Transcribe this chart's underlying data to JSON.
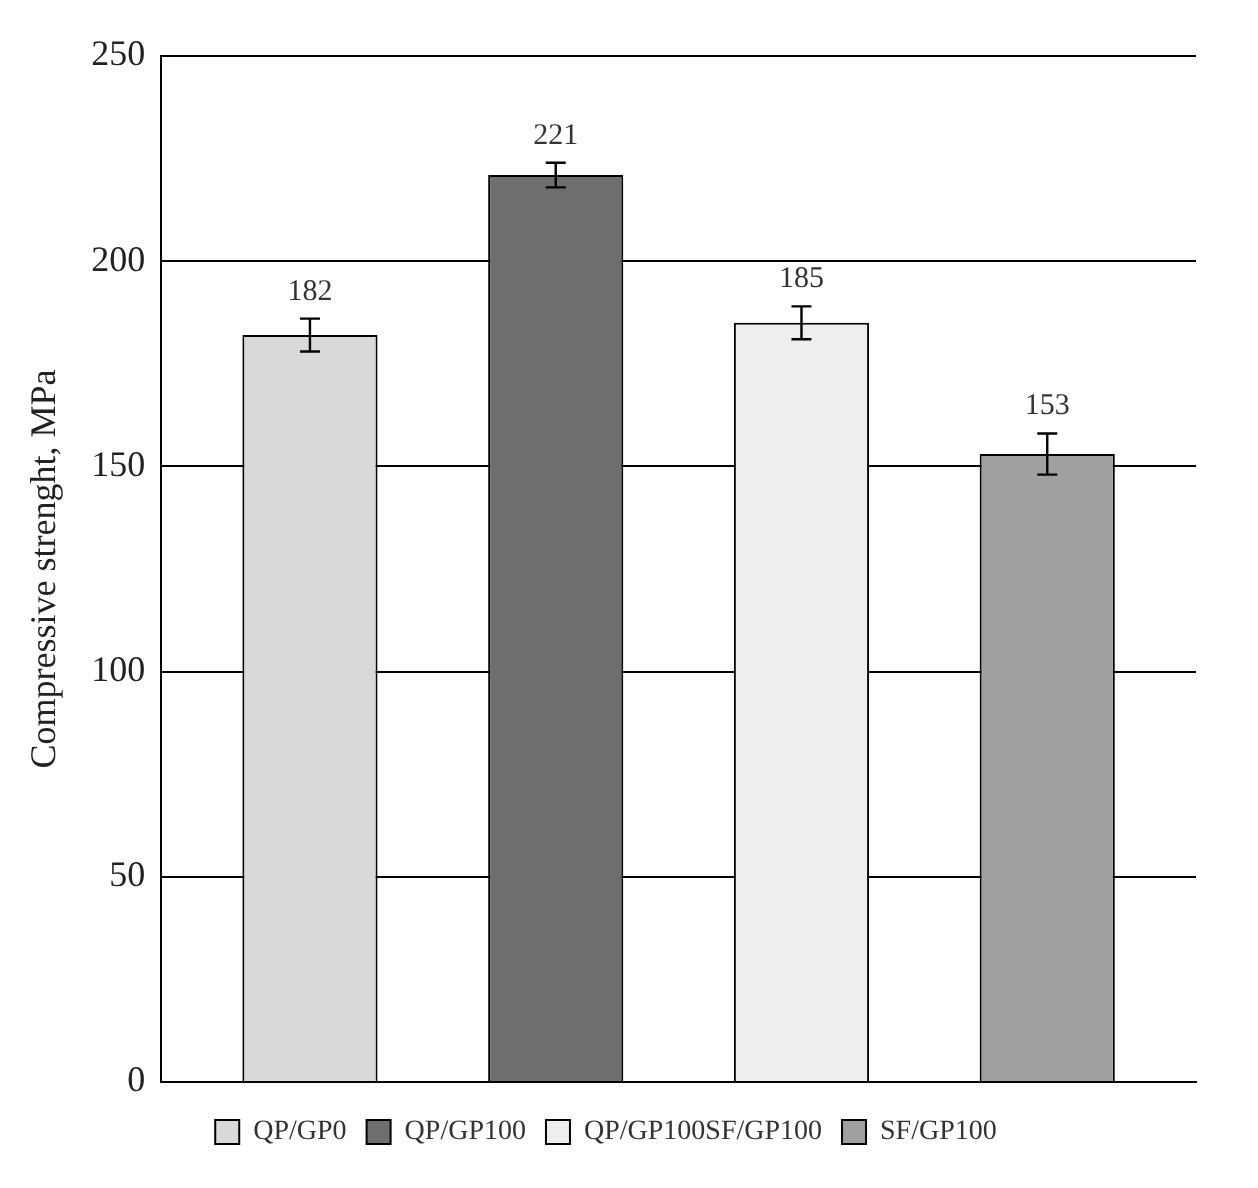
{
  "chart_data": {
    "type": "bar",
    "ylabel": "Compressive strenght, MPa",
    "categories": [
      null
    ],
    "series": [
      {
        "name": "QP/GP0",
        "color": "#d9d9d9",
        "values": [
          182
        ],
        "errors": [
          4
        ]
      },
      {
        "name": "QP/GP100",
        "color": "#6e6e6e",
        "values": [
          221
        ],
        "errors": [
          3
        ]
      },
      {
        "name": "QP/GP100SF/GP100",
        "color": "#eeeeee",
        "values": [
          185
        ],
        "errors": [
          4
        ]
      },
      {
        "name": "SF/GP100",
        "color": "#a0a0a0",
        "values": [
          153
        ],
        "errors": [
          5
        ]
      }
    ],
    "ylim": [
      0,
      250
    ],
    "yticks": [
      0,
      50,
      100,
      150,
      200,
      250
    ],
    "grid": "y",
    "legend": "bottom",
    "data_labels": true
  }
}
